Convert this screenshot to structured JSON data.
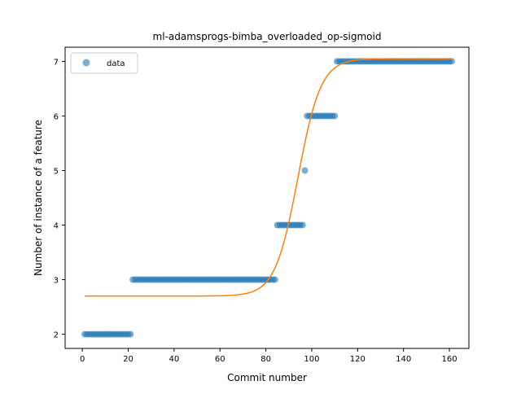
{
  "chart_data": {
    "type": "scatter",
    "title": "ml-adamsprogs-bimba_overloaded_op-sigmoid",
    "xlabel": "Commit number",
    "ylabel": "Number of instance of a feature",
    "xlim": [
      -7.5,
      168.5
    ],
    "ylim": [
      1.74,
      7.26
    ],
    "xticks": [
      0,
      20,
      40,
      60,
      80,
      100,
      120,
      140,
      160
    ],
    "yticks": [
      2,
      3,
      4,
      5,
      6,
      7
    ],
    "grid": false,
    "legend": {
      "position": "upper-left",
      "entries": [
        "data"
      ]
    },
    "colors": {
      "data": "#1f77b4",
      "fit": "#ff7f0e"
    },
    "series": [
      {
        "name": "data",
        "kind": "points",
        "segments": [
          {
            "x_start": 1,
            "x_end": 21,
            "y": 2
          },
          {
            "x_start": 22,
            "x_end": 84,
            "y": 3
          },
          {
            "x_start": 85,
            "x_end": 96,
            "y": 4
          },
          {
            "x_start": 97,
            "x_end": 97,
            "y": 5
          },
          {
            "x_start": 98,
            "x_end": 110,
            "y": 6
          },
          {
            "x_start": 111,
            "x_end": 161,
            "y": 7
          }
        ]
      },
      {
        "kind": "sigmoid-fit",
        "x_range": [
          1,
          161
        ],
        "lower": 2.7,
        "upper": 7.05,
        "midpoint": 94,
        "slope": 0.2
      }
    ]
  }
}
